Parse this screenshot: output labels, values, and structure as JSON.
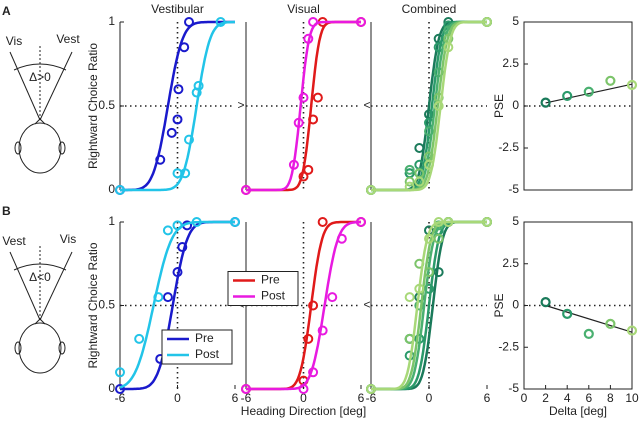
{
  "diagrams": [
    {
      "label": "A",
      "left": "Vis",
      "left_color": "#e01a1a",
      "right": "Vest",
      "right_color": "#1a1acc",
      "delta": "Δ>0"
    },
    {
      "label": "B",
      "left": "Vest",
      "left_color": "#1a1acc",
      "right": "Vis",
      "right_color": "#e01a1a",
      "delta": "Δ<0"
    }
  ],
  "chart_data": [
    {
      "type": "psychometric",
      "title": "Vestibular",
      "title_color": "#1a1acc",
      "ylabel": "Rightward Choice Ratio",
      "xlim": [
        -6,
        6
      ],
      "ylim": [
        0,
        1
      ],
      "yticks": [
        0,
        0.5,
        1
      ],
      "ref_x": 0,
      "ref_y": 0.5,
      "shift_marker": ">",
      "series": [
        {
          "color": "#1a1acc",
          "x": [
            -6,
            -1.8,
            -0.6,
            0,
            0.1,
            0.7,
            1.2
          ],
          "values": [
            0,
            0.18,
            0.34,
            0.42,
            0.6,
            0.85,
            1
          ],
          "fit_mean": -1,
          "fit_sd": 1.2
        },
        {
          "color": "#22c4e8",
          "x": [
            -6,
            0,
            0.8,
            1.2,
            2,
            2.2,
            4.5
          ],
          "values": [
            0,
            0.1,
            0.1,
            0.3,
            0.58,
            0.62,
            1
          ],
          "fit_mean": 2,
          "fit_sd": 1.1
        }
      ]
    },
    {
      "type": "psychometric",
      "title": "Visual",
      "title_color": "#e01a1a",
      "xlim": [
        -6,
        6
      ],
      "ylim": [
        0,
        1
      ],
      "ref_x": 0,
      "ref_y": 0.5,
      "shift_marker": "<",
      "series": [
        {
          "color": "#e01a1a",
          "x": [
            -6,
            0,
            0.5,
            1,
            1.5,
            2,
            6
          ],
          "values": [
            0,
            0.08,
            0.12,
            0.42,
            0.55,
            1,
            1
          ],
          "fit_mean": 0.8,
          "fit_sd": 0.7
        },
        {
          "color": "#e81ae0",
          "x": [
            -6,
            -1,
            -0.5,
            0,
            0.5,
            1,
            6
          ],
          "values": [
            0,
            0.15,
            0.4,
            0.55,
            0.9,
            1,
            1
          ],
          "fit_mean": -0.3,
          "fit_sd": 0.7
        }
      ]
    },
    {
      "type": "psychometric",
      "title": "Combined",
      "title_color": "#1a8a6a",
      "xlim": [
        -6,
        6
      ],
      "ylim": [
        0,
        1
      ],
      "ref_x": 0,
      "ref_y": 0.5,
      "series": [
        {
          "color": "#1a7a5a",
          "x": [
            -6,
            -2,
            -1,
            0,
            1,
            2,
            6
          ],
          "values": [
            0,
            0.1,
            0.25,
            0.45,
            0.9,
            1,
            1
          ],
          "fit_mean": 0,
          "fit_sd": 0.8
        },
        {
          "color": "#2a9a6a",
          "x": [
            -6,
            -2,
            -1,
            0,
            1,
            2,
            6
          ],
          "values": [
            0,
            0.1,
            0.15,
            0.4,
            0.85,
            0.98,
            1
          ],
          "fit_mean": 0.3,
          "fit_sd": 0.8
        },
        {
          "color": "#4ab070",
          "x": [
            -6,
            -2,
            -1,
            0,
            1,
            2,
            6
          ],
          "values": [
            0,
            0.12,
            0.1,
            0.35,
            0.7,
            0.95,
            1
          ],
          "fit_mean": 0.6,
          "fit_sd": 0.8
        },
        {
          "color": "#7cc46a",
          "x": [
            -6,
            -2,
            -1,
            0,
            1,
            2,
            6
          ],
          "values": [
            0,
            0.05,
            0.1,
            0.2,
            0.55,
            0.9,
            1
          ],
          "fit_mean": 0.9,
          "fit_sd": 0.8
        },
        {
          "color": "#a8d878",
          "x": [
            -6,
            -2,
            -1,
            0,
            1,
            2,
            6
          ],
          "values": [
            0,
            0.02,
            0.05,
            0.15,
            0.5,
            0.85,
            1
          ],
          "fit_mean": 1.2,
          "fit_sd": 0.8
        }
      ]
    },
    {
      "type": "pse",
      "ylabel": "PSE",
      "xlim": [
        0,
        10
      ],
      "ylim": [
        -5,
        5
      ],
      "yticks": [
        -5,
        -2.5,
        0,
        2.5,
        5
      ],
      "ref_y": 0,
      "x": [
        2,
        4,
        6,
        8,
        10
      ],
      "values": [
        0.2,
        0.6,
        0.85,
        1.5,
        1.25
      ],
      "point_colors": [
        "#1a7a5a",
        "#2a9a6a",
        "#4ab070",
        "#7cc46a",
        "#a8d878"
      ],
      "fit_slope": 0.14,
      "fit_intercept": -0.1
    },
    {
      "type": "psychometric",
      "ylabel": "Rightward Choice Ratio",
      "xlim": [
        -6,
        6
      ],
      "ylim": [
        0,
        1
      ],
      "yticks": [
        0,
        0.5,
        1
      ],
      "xticks": [
        -6,
        0,
        6
      ],
      "ref_x": 0,
      "ref_y": 0.5,
      "shift_marker": "<",
      "legend": "lower right",
      "series": [
        {
          "name": "Pre",
          "color": "#1a1acc",
          "x": [
            -6,
            -1.8,
            -1,
            0,
            0.5,
            1,
            6
          ],
          "values": [
            0,
            0.18,
            0.55,
            0.7,
            0.85,
            0.98,
            1
          ],
          "fit_mean": -0.5,
          "fit_sd": 1.2
        },
        {
          "name": "Post",
          "color": "#22c4e8",
          "x": [
            -6,
            -4,
            -2,
            -1,
            0,
            2,
            6
          ],
          "values": [
            0.1,
            0.3,
            0.55,
            0.95,
            0.98,
            1,
            1
          ],
          "fit_mean": -2.5,
          "fit_sd": 1.5
        }
      ]
    },
    {
      "type": "psychometric",
      "xlabel": "Heading Direction [deg]",
      "xlim": [
        -6,
        6
      ],
      "ylim": [
        0,
        1
      ],
      "xticks": [
        -6,
        0,
        6
      ],
      "ref_x": 0,
      "ref_y": 0.5,
      "shift_marker": "<",
      "legend": "center left",
      "series": [
        {
          "name": "Pre",
          "color": "#e01a1a",
          "x": [
            -6,
            0,
            0.5,
            1,
            2,
            6
          ],
          "values": [
            0,
            0.05,
            0.3,
            0.5,
            1,
            1
          ],
          "fit_mean": 0.8,
          "fit_sd": 0.9
        },
        {
          "name": "Post",
          "color": "#e81ae0",
          "x": [
            -6,
            0,
            1,
            2,
            3,
            4,
            6
          ],
          "values": [
            0,
            0,
            0.1,
            0.35,
            0.55,
            0.9,
            1
          ],
          "fit_mean": 2.2,
          "fit_sd": 1.1
        }
      ]
    },
    {
      "type": "psychometric",
      "xlim": [
        -6,
        6
      ],
      "ylim": [
        0,
        1
      ],
      "xticks": [
        -6,
        0,
        6
      ],
      "ref_x": 0,
      "ref_y": 0.5,
      "series": [
        {
          "color": "#1a7a5a",
          "x": [
            -6,
            -2,
            -1,
            0,
            1,
            2,
            6
          ],
          "values": [
            0,
            0.3,
            0.55,
            0.95,
            0.7,
            1,
            1
          ],
          "fit_mean": 0.4,
          "fit_sd": 0.8
        },
        {
          "color": "#2a9a6a",
          "x": [
            -6,
            -2,
            -1,
            0,
            1,
            2,
            6
          ],
          "values": [
            0,
            0.2,
            0.3,
            0.6,
            0.95,
            1,
            1
          ],
          "fit_mean": 0,
          "fit_sd": 0.8
        },
        {
          "color": "#4ab070",
          "x": [
            -6,
            -2,
            -1,
            0,
            1,
            2,
            6
          ],
          "values": [
            0,
            0.3,
            0.5,
            0.7,
            0.98,
            1,
            1
          ],
          "fit_mean": -0.5,
          "fit_sd": 0.8
        },
        {
          "color": "#7cc46a",
          "x": [
            -6,
            -2,
            -1,
            0,
            1,
            2,
            6
          ],
          "values": [
            0,
            0.3,
            0.75,
            0.7,
            0.9,
            1,
            1
          ],
          "fit_mean": -0.8,
          "fit_sd": 0.8
        },
        {
          "color": "#a8d878",
          "x": [
            -6,
            -2,
            -1,
            0,
            1,
            2,
            6
          ],
          "values": [
            0,
            0.55,
            0.6,
            0.9,
            1,
            1,
            1
          ],
          "fit_mean": -1.2,
          "fit_sd": 0.8
        }
      ]
    },
    {
      "type": "pse",
      "ylabel": "PSE",
      "xlabel": "Delta [deg]",
      "xlim": [
        0,
        10
      ],
      "ylim": [
        -5,
        5
      ],
      "yticks": [
        -5,
        -2.5,
        0,
        2.5,
        5
      ],
      "xticks": [
        0,
        2,
        4,
        6,
        8,
        10
      ],
      "ref_y": 0,
      "x": [
        2,
        4,
        6,
        8,
        10
      ],
      "values": [
        0.2,
        -0.5,
        -1.7,
        -1.1,
        -1.5
      ],
      "point_colors": [
        "#1a7a5a",
        "#2a9a6a",
        "#4ab070",
        "#7cc46a",
        "#a8d878"
      ],
      "fit_slope": -0.2,
      "fit_intercept": 0.4
    }
  ]
}
